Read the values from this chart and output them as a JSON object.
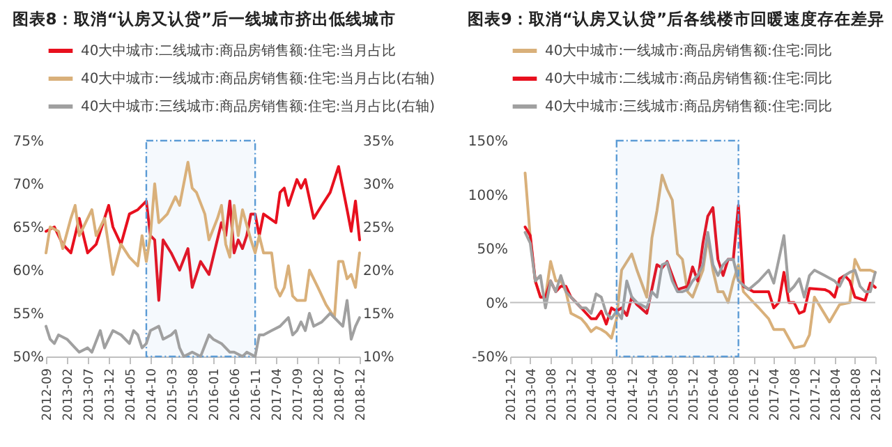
{
  "chart_data": [
    {
      "type": "line",
      "title": "图表8：取消“认房又认贷”后一线城市挤出低线城市",
      "legend": "top",
      "xlim": [
        "2012-09",
        "2018-12"
      ],
      "xticks": [
        "2012-09",
        "2013-02",
        "2013-07",
        "2013-12",
        "2014-05",
        "2014-10",
        "2015-03",
        "2015-08",
        "2016-01",
        "2016-06",
        "2016-11",
        "2017-04",
        "2017-09",
        "2018-02",
        "2018-07",
        "2018-12"
      ],
      "ylim": [
        50,
        75
      ],
      "yticks": [
        {
          "value": 50,
          "label": "50%"
        },
        {
          "value": 55,
          "label": "55%"
        },
        {
          "value": 60,
          "label": "60%"
        },
        {
          "value": 65,
          "label": "65%"
        },
        {
          "value": 70,
          "label": "70%"
        },
        {
          "value": 75,
          "label": "75%"
        }
      ],
      "y2lim": [
        10,
        35
      ],
      "y2ticks": [
        {
          "value": 10,
          "label": "10%"
        },
        {
          "value": 15,
          "label": "15%"
        },
        {
          "value": 20,
          "label": "20%"
        },
        {
          "value": 25,
          "label": "25%"
        },
        {
          "value": 30,
          "label": "30%"
        },
        {
          "value": 35,
          "label": "35%"
        }
      ],
      "bands": [
        {
          "axis": "x",
          "from": "2014-09",
          "to": "2016-11",
          "color": "#5b9bd5"
        }
      ],
      "series": [
        {
          "name": "40大中城市:二线城市:商品房销售额:住宅:当月占比",
          "color": "#e8101e",
          "x": [
            "2012-09",
            "2012-11",
            "2013-01",
            "2013-03",
            "2013-05",
            "2013-07",
            "2013-09",
            "2013-12",
            "2014-01",
            "2014-03",
            "2014-05",
            "2014-07",
            "2014-09",
            "2014-10",
            "2014-11",
            "2014-12",
            "2015-01",
            "2015-03",
            "2015-05",
            "2015-07",
            "2015-08",
            "2015-10",
            "2015-12",
            "2016-03",
            "2016-04",
            "2016-05",
            "2016-06",
            "2016-07",
            "2016-08",
            "2016-09",
            "2016-10",
            "2016-11",
            "2016-12",
            "2017-01",
            "2017-04",
            "2017-05",
            "2017-06",
            "2017-07",
            "2017-09",
            "2017-10",
            "2017-11",
            "2018-01",
            "2018-03",
            "2018-05",
            "2018-07",
            "2018-09",
            "2018-10",
            "2018-11",
            "2018-12"
          ],
          "values": [
            64.5,
            65,
            63,
            62,
            66,
            62,
            63,
            67.5,
            65,
            63,
            66.5,
            67,
            68,
            64,
            63.5,
            56.5,
            63.5,
            62,
            60,
            62.5,
            58,
            61,
            59.5,
            65.5,
            64,
            68,
            62,
            63.5,
            62.5,
            64,
            66.5,
            66.5,
            64,
            66.5,
            65.5,
            69,
            69.5,
            67.5,
            70.5,
            69.5,
            70.5,
            66,
            67.5,
            69,
            72,
            67,
            64.5,
            68,
            63.5
          ]
        },
        {
          "name": "40大中城市:一线城市:商品房销售额:住宅:当月占比(右轴)",
          "color": "#d9b07a",
          "axis": "y2",
          "x": [
            "2012-09",
            "2012-10",
            "2012-12",
            "2013-01",
            "2013-03",
            "2013-04",
            "2013-05",
            "2013-06",
            "2013-08",
            "2013-09",
            "2013-11",
            "2014-01",
            "2014-03",
            "2014-05",
            "2014-07",
            "2014-08",
            "2014-09",
            "2014-10",
            "2014-11",
            "2014-12",
            "2015-02",
            "2015-04",
            "2015-05",
            "2015-07",
            "2015-08",
            "2015-09",
            "2015-11",
            "2015-12",
            "2016-02",
            "2016-03",
            "2016-04",
            "2016-05",
            "2016-06",
            "2016-07",
            "2016-08",
            "2016-10",
            "2016-11",
            "2016-12",
            "2017-01",
            "2017-03",
            "2017-04",
            "2017-05",
            "2017-06",
            "2017-07",
            "2017-08",
            "2017-09",
            "2017-11",
            "2017-12",
            "2018-02",
            "2018-04",
            "2018-06",
            "2018-07",
            "2018-08",
            "2018-09",
            "2018-10",
            "2018-11",
            "2018-12"
          ],
          "values": [
            22,
            25,
            24.5,
            22.5,
            26,
            27.5,
            24,
            25,
            27,
            24,
            26,
            19.5,
            23,
            21.5,
            20.5,
            24,
            21,
            24,
            30,
            25.5,
            26.5,
            28.5,
            27.5,
            32.5,
            29.5,
            29,
            26.5,
            23.5,
            26,
            27.5,
            23,
            21.5,
            27.5,
            24,
            27,
            23.5,
            22,
            24,
            22,
            22,
            18,
            17,
            18,
            20.5,
            17,
            16.5,
            16.5,
            20,
            18,
            16,
            14.5,
            21,
            21,
            19,
            19.5,
            18,
            22
          ]
        },
        {
          "name": "40大中城市:三线城市:商品房销售额:住宅:当月占比(右轴)",
          "color": "#a0a0a0",
          "axis": "y2",
          "x": [
            "2012-09",
            "2012-10",
            "2012-11",
            "2012-12",
            "2013-02",
            "2013-04",
            "2013-05",
            "2013-07",
            "2013-08",
            "2013-10",
            "2013-11",
            "2013-12",
            "2014-01",
            "2014-03",
            "2014-05",
            "2014-06",
            "2014-07",
            "2014-08",
            "2014-09",
            "2014-10",
            "2014-12",
            "2015-01",
            "2015-03",
            "2015-04",
            "2015-05",
            "2015-06",
            "2015-08",
            "2015-10",
            "2015-12",
            "2016-01",
            "2016-03",
            "2016-05",
            "2016-06",
            "2016-08",
            "2016-09",
            "2016-11",
            "2016-12",
            "2017-01",
            "2017-03",
            "2017-05",
            "2017-07",
            "2017-08",
            "2017-09",
            "2017-10",
            "2017-11",
            "2017-12",
            "2018-01",
            "2018-03",
            "2018-05",
            "2018-07",
            "2018-08",
            "2018-09",
            "2018-10",
            "2018-11",
            "2018-12"
          ],
          "values": [
            13.5,
            12,
            11.5,
            12.5,
            12,
            11,
            10.5,
            11,
            10.5,
            13,
            11,
            12,
            13,
            12.5,
            11.5,
            13,
            12.5,
            11,
            11.5,
            13,
            13.5,
            12,
            12.5,
            13,
            11,
            10,
            10.5,
            10,
            12.5,
            12,
            11.5,
            10.5,
            10.5,
            10,
            10.5,
            10,
            12.5,
            12.5,
            13,
            13.5,
            14.5,
            12.5,
            13,
            14,
            13,
            15,
            13.5,
            14,
            15,
            14,
            13.5,
            16.5,
            12,
            13.5,
            14.5
          ]
        }
      ]
    },
    {
      "type": "line",
      "title": "图表9：取消“认房又认贷”后各线楼市回暖速度存在差异",
      "legend": "top",
      "xlim": [
        "2012-12",
        "2018-12"
      ],
      "xticks": [
        "2012-12",
        "2013-04",
        "2013-08",
        "2013-12",
        "2014-04",
        "2014-08",
        "2014-12",
        "2015-04",
        "2015-08",
        "2015-12",
        "2016-04",
        "2016-08",
        "2016-12",
        "2017-04",
        "2017-08",
        "2017-12",
        "2018-04",
        "2018-08",
        "2018-12"
      ],
      "ylim": [
        -50,
        150
      ],
      "yticks": [
        {
          "value": -50,
          "label": "-50%"
        },
        {
          "value": 0,
          "label": "0%"
        },
        {
          "value": 50,
          "label": "50%"
        },
        {
          "value": 100,
          "label": "100%"
        },
        {
          "value": 150,
          "label": "150%"
        }
      ],
      "ref_lines": [
        {
          "axis": "y",
          "value": 0,
          "color": "#bfbfbf"
        }
      ],
      "bands": [
        {
          "axis": "x",
          "from": "2014-09",
          "to": "2016-09",
          "color": "#5b9bd5"
        }
      ],
      "series": [
        {
          "name": "40大中城市:一线城市:商品房销售额:住宅:同比",
          "color": "#d9b07a",
          "x": [
            "2013-03",
            "2013-04",
            "2013-05",
            "2013-06",
            "2013-07",
            "2013-08",
            "2013-09",
            "2013-10",
            "2013-11",
            "2013-12",
            "2014-02",
            "2014-03",
            "2014-04",
            "2014-05",
            "2014-06",
            "2014-07",
            "2014-08",
            "2014-09",
            "2014-10",
            "2014-12",
            "2015-01",
            "2015-03",
            "2015-04",
            "2015-05",
            "2015-06",
            "2015-07",
            "2015-08",
            "2015-09",
            "2015-10",
            "2015-11",
            "2015-12",
            "2016-02",
            "2016-03",
            "2016-04",
            "2016-05",
            "2016-06",
            "2016-07",
            "2016-08",
            "2016-09",
            "2016-10",
            "2016-12",
            "2017-01",
            "2017-03",
            "2017-04",
            "2017-06",
            "2017-08",
            "2017-10",
            "2017-11",
            "2017-12",
            "2018-03",
            "2018-05",
            "2018-07",
            "2018-08",
            "2018-09",
            "2018-11",
            "2018-12"
          ],
          "values": [
            120,
            60,
            20,
            5,
            5,
            38,
            20,
            20,
            10,
            -10,
            -15,
            -20,
            -27,
            -23,
            -25,
            -28,
            -33,
            -15,
            30,
            45,
            30,
            5,
            60,
            85,
            118,
            105,
            95,
            45,
            40,
            10,
            5,
            30,
            60,
            30,
            10,
            10,
            0,
            20,
            35,
            10,
            0,
            -5,
            -15,
            -25,
            -25,
            -42,
            -40,
            -30,
            5,
            -18,
            -2,
            0,
            40,
            30,
            30,
            28
          ]
        },
        {
          "name": "40大中城市:二线城市:商品房销售额:住宅:同比",
          "color": "#e8101e",
          "x": [
            "2013-03",
            "2013-04",
            "2013-05",
            "2013-06",
            "2013-07",
            "2013-08",
            "2013-09",
            "2013-10",
            "2013-11",
            "2013-12",
            "2014-02",
            "2014-04",
            "2014-05",
            "2014-06",
            "2014-07",
            "2014-08",
            "2014-09",
            "2014-10",
            "2014-11",
            "2014-12",
            "2015-01",
            "2015-03",
            "2015-05",
            "2015-06",
            "2015-07",
            "2015-08",
            "2015-09",
            "2015-11",
            "2015-12",
            "2016-01",
            "2016-02",
            "2016-03",
            "2016-04",
            "2016-05",
            "2016-06",
            "2016-07",
            "2016-08",
            "2016-09",
            "2016-10",
            "2016-12",
            "2017-03",
            "2017-04",
            "2017-05",
            "2017-06",
            "2017-07",
            "2017-08",
            "2017-09",
            "2017-10",
            "2017-11",
            "2018-02",
            "2018-03",
            "2018-04",
            "2018-05",
            "2018-06",
            "2018-07",
            "2018-08",
            "2018-10",
            "2018-11",
            "2018-12"
          ],
          "values": [
            70,
            62,
            20,
            5,
            5,
            20,
            10,
            15,
            15,
            5,
            -5,
            -15,
            -15,
            -8,
            -20,
            -5,
            -8,
            -5,
            -12,
            5,
            -2,
            -10,
            35,
            32,
            38,
            25,
            12,
            15,
            33,
            20,
            55,
            80,
            88,
            40,
            25,
            40,
            40,
            90,
            15,
            10,
            10,
            -5,
            0,
            28,
            0,
            0,
            -10,
            -8,
            13,
            12,
            10,
            5,
            22,
            25,
            20,
            5,
            2,
            18,
            14
          ]
        },
        {
          "name": "40大中城市:三线城市:商品房销售额:住宅:同比",
          "color": "#a0a0a0",
          "x": [
            "2013-03",
            "2013-04",
            "2013-05",
            "2013-06",
            "2013-07",
            "2013-08",
            "2013-09",
            "2013-10",
            "2013-11",
            "2013-12",
            "2014-02",
            "2014-03",
            "2014-04",
            "2014-05",
            "2014-06",
            "2014-07",
            "2014-08",
            "2014-09",
            "2014-10",
            "2014-11",
            "2014-12",
            "2015-01",
            "2015-03",
            "2015-04",
            "2015-05",
            "2015-06",
            "2015-07",
            "2015-08",
            "2015-09",
            "2015-10",
            "2015-11",
            "2015-12",
            "2016-01",
            "2016-02",
            "2016-03",
            "2016-04",
            "2016-05",
            "2016-06",
            "2016-07",
            "2016-08",
            "2016-09",
            "2016-11",
            "2017-01",
            "2017-03",
            "2017-04",
            "2017-06",
            "2017-07",
            "2017-08",
            "2017-09",
            "2017-10",
            "2017-11",
            "2017-12",
            "2018-02",
            "2018-04",
            "2018-05",
            "2018-06",
            "2018-07",
            "2018-08",
            "2018-09",
            "2018-10",
            "2018-11",
            "2018-12"
          ],
          "values": [
            65,
            55,
            20,
            25,
            -5,
            20,
            10,
            25,
            10,
            5,
            -5,
            -5,
            -10,
            8,
            5,
            -10,
            -15,
            -8,
            -15,
            20,
            5,
            0,
            -5,
            10,
            5,
            35,
            37,
            20,
            10,
            10,
            12,
            20,
            25,
            35,
            65,
            35,
            25,
            35,
            40,
            40,
            20,
            12,
            20,
            30,
            18,
            62,
            10,
            15,
            22,
            5,
            25,
            30,
            25,
            20,
            15,
            25,
            28,
            30,
            15,
            10,
            10,
            28
          ]
        }
      ]
    }
  ]
}
